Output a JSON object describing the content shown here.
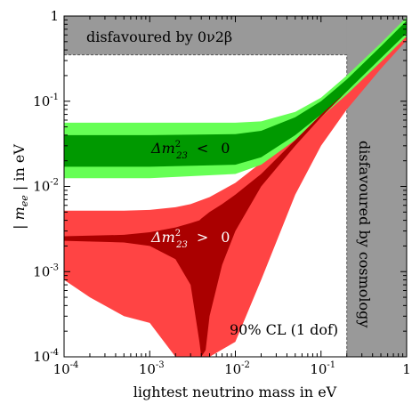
{
  "chart_data": {
    "type": "area",
    "xlabel": "lightest neutrino mass in eV",
    "ylabel": "| m_ee | in eV",
    "xscale": "log",
    "yscale": "log",
    "xlim": [
      0.0001,
      1
    ],
    "ylim": [
      0.0001,
      1
    ],
    "x_ticks": [
      {
        "base": "10",
        "exp": "-4"
      },
      {
        "base": "10",
        "exp": "-3"
      },
      {
        "base": "10",
        "exp": "-2"
      },
      {
        "base": "10",
        "exp": "-1"
      },
      {
        "base": "1",
        "exp": ""
      }
    ],
    "y_ticks": [
      {
        "base": "10",
        "exp": "-4"
      },
      {
        "base": "10",
        "exp": "-3"
      },
      {
        "base": "10",
        "exp": "-2"
      },
      {
        "base": "10",
        "exp": "-1"
      },
      {
        "base": "1",
        "exp": ""
      }
    ],
    "bands": {
      "inverted_outer": {
        "color": "#66ff55",
        "x": [
          0.0001,
          0.001,
          0.01,
          0.02,
          0.05,
          0.1,
          0.2,
          0.5,
          1
        ],
        "lower": [
          0.0125,
          0.0125,
          0.014,
          0.018,
          0.035,
          0.065,
          0.12,
          0.29,
          0.58
        ],
        "upper": [
          0.056,
          0.056,
          0.056,
          0.058,
          0.075,
          0.11,
          0.2,
          0.48,
          0.97
        ]
      },
      "inverted_inner": {
        "color": "#009900",
        "x": [
          0.0001,
          0.001,
          0.01,
          0.02,
          0.05,
          0.1,
          0.2,
          0.5,
          1
        ],
        "lower": [
          0.017,
          0.017,
          0.018,
          0.022,
          0.04,
          0.07,
          0.13,
          0.32,
          0.63
        ],
        "upper": [
          0.04,
          0.04,
          0.041,
          0.045,
          0.065,
          0.1,
          0.18,
          0.44,
          0.88
        ]
      },
      "normal_outer": {
        "color": "#ff4444",
        "x": [
          0.0001,
          0.0002,
          0.0005,
          0.001,
          0.002,
          0.003,
          0.005,
          0.01,
          0.02,
          0.05,
          0.1,
          0.2,
          0.5,
          1
        ],
        "lower": [
          0.0008,
          0.0005,
          0.0003,
          0.00025,
          0.0001,
          0.0001,
          0.0001,
          0.00015,
          0.0008,
          0.008,
          0.03,
          0.08,
          0.24,
          0.52
        ],
        "upper": [
          0.0052,
          0.0052,
          0.0052,
          0.0053,
          0.0057,
          0.0062,
          0.0075,
          0.011,
          0.019,
          0.045,
          0.085,
          0.16,
          0.4,
          0.8
        ]
      },
      "normal_inner": {
        "color": "#aa0000",
        "x": [
          0.0001,
          0.0005,
          0.001,
          0.002,
          0.003,
          0.0038,
          0.004,
          0.0045,
          0.005,
          0.007,
          0.01,
          0.02,
          0.05,
          0.1,
          0.2,
          0.5,
          1
        ],
        "lower": [
          0.0023,
          0.0022,
          0.002,
          0.0014,
          0.0007,
          0.00015,
          0.0001,
          0.00012,
          0.0003,
          0.0012,
          0.003,
          0.01,
          0.03,
          0.065,
          0.13,
          0.33,
          0.66
        ],
        "upper": [
          0.0026,
          0.0027,
          0.0029,
          0.0033,
          0.0037,
          0.004,
          0.0042,
          0.0046,
          0.005,
          0.0062,
          0.008,
          0.014,
          0.035,
          0.07,
          0.135,
          0.34,
          0.68
        ]
      }
    },
    "excluded": [
      {
        "id": "0nu2beta",
        "color": "#999999",
        "y_min": 0.35,
        "label": "disfavoured by 0ν2β"
      },
      {
        "id": "cosmology",
        "color": "#999999",
        "x_min": 0.2,
        "label": "disfavoured by cosmology"
      }
    ],
    "annotations": {
      "inverted": {
        "delta": "Δ",
        "m": "m",
        "sup": "2",
        "sub": "23",
        "rel": "<",
        "val": "0"
      },
      "normal": {
        "delta": "Δ",
        "m": "m",
        "sup": "2",
        "sub": "23",
        "rel": ">",
        "val": "0"
      },
      "cl_note": "90% CL (1 dof)"
    }
  }
}
